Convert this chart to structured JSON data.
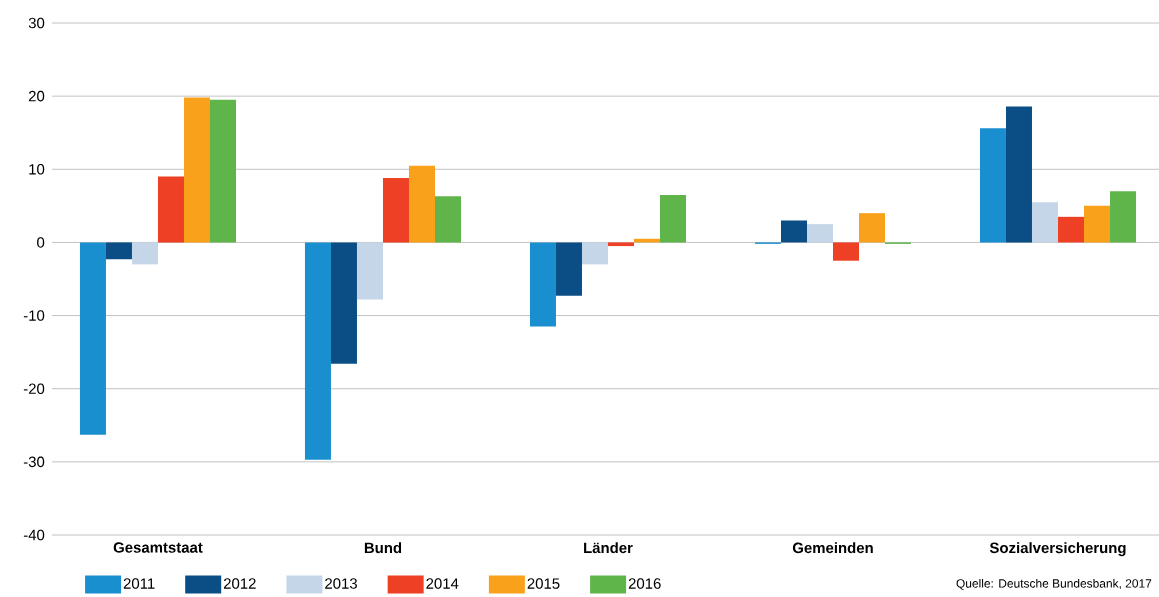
{
  "chart_data": {
    "type": "bar",
    "categories": [
      "Gesamtstaat",
      "Bund",
      "Länder",
      "Gemeinden",
      "Sozialversicherung"
    ],
    "series": [
      {
        "name": "2011",
        "color": "#1a8fd0",
        "values": [
          -26.3,
          -29.7,
          -11.5,
          -0.2,
          15.6
        ]
      },
      {
        "name": "2012",
        "color": "#0b4e86",
        "values": [
          -2.3,
          -16.6,
          -7.3,
          3.0,
          18.6
        ]
      },
      {
        "name": "2013",
        "color": "#c5d6e8",
        "values": [
          -3.0,
          -7.8,
          -3.0,
          2.5,
          5.5
        ]
      },
      {
        "name": "2014",
        "color": "#ee4025",
        "values": [
          9.0,
          8.8,
          -0.5,
          -2.5,
          3.5
        ]
      },
      {
        "name": "2015",
        "color": "#f9a11b",
        "values": [
          19.8,
          10.5,
          0.5,
          4.0,
          5.0
        ]
      },
      {
        "name": "2016",
        "color": "#5fb54a",
        "values": [
          19.5,
          6.3,
          6.5,
          -0.2,
          7.0
        ]
      }
    ],
    "ylim": [
      -40,
      30
    ],
    "yticks": [
      -40,
      -30,
      -20,
      -10,
      0,
      10,
      20,
      30
    ],
    "grid": "y",
    "legend": "bottom",
    "annotations": [
      "Quelle: Deutsche Bundesbank, 2017"
    ]
  }
}
